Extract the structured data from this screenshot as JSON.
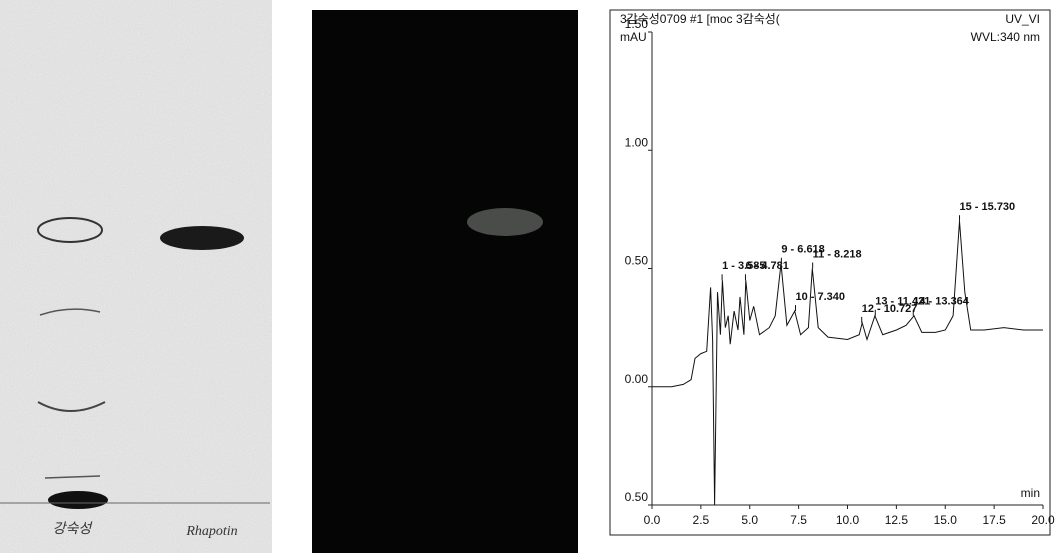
{
  "tlc": {
    "lane_labels": [
      "강숙성",
      "Rhapotin"
    ]
  },
  "chart_data": {
    "type": "line",
    "title": "3감숙성0709 #1 [moc",
    "subtitle": "3감숙성(",
    "detector": "UV_VI",
    "wavelength": "WVL:340 nm",
    "y_unit": "mAU",
    "x_unit": "min",
    "color": "#111111",
    "xlim": [
      0,
      20
    ],
    "xticks": [
      {
        "value": 0,
        "label": "0.0"
      },
      2.5,
      {
        "value": 5,
        "label": "5.0"
      },
      7.5,
      {
        "value": 10,
        "label": "10.0"
      },
      12.5,
      {
        "value": 15,
        "label": "15.0"
      },
      17.5,
      {
        "value": 20,
        "label": "20.0"
      }
    ],
    "ylim": [
      -0.5,
      1.5
    ],
    "yticks": [
      {
        "value": -0.5,
        "label": "0.50"
      },
      {
        "value": 0,
        "label": "0.00"
      },
      {
        "value": 0.5,
        "label": "0.50"
      },
      {
        "value": 1,
        "label": "1.00"
      },
      {
        "value": 1.5,
        "label": "1.50"
      }
    ],
    "x": [
      0,
      1,
      1.6,
      2,
      2.2,
      2.5,
      2.8,
      3.0,
      3.1,
      3.2,
      3.35,
      3.5,
      3.6,
      3.75,
      3.9,
      4.0,
      4.2,
      4.4,
      4.5,
      4.7,
      4.8,
      5.0,
      5.2,
      5.5,
      6.0,
      6.3,
      6.6,
      6.9,
      7.3,
      7.6,
      8.0,
      8.2,
      8.5,
      9,
      10,
      10.6,
      10.75,
      11,
      11.4,
      11.8,
      12.5,
      13,
      13.4,
      13.8,
      14.5,
      15,
      15.4,
      15.73,
      16,
      16.3,
      17,
      18,
      19,
      20
    ],
    "values": [
      0.0,
      0.0,
      0.01,
      0.03,
      0.12,
      0.14,
      0.15,
      0.42,
      0.2,
      -0.5,
      0.4,
      0.22,
      0.45,
      0.25,
      0.3,
      0.18,
      0.32,
      0.24,
      0.38,
      0.22,
      0.45,
      0.28,
      0.34,
      0.22,
      0.25,
      0.3,
      0.52,
      0.26,
      0.32,
      0.22,
      0.25,
      0.5,
      0.25,
      0.21,
      0.2,
      0.22,
      0.27,
      0.2,
      0.3,
      0.22,
      0.24,
      0.26,
      0.3,
      0.23,
      0.23,
      0.24,
      0.3,
      0.7,
      0.4,
      0.24,
      0.24,
      0.25,
      0.24,
      0.24
    ],
    "peaks": [
      {
        "label": "1 - 3.585",
        "x": 3.585,
        "y": 0.45
      },
      {
        "label": "6 - 4.781",
        "x": 4.781,
        "y": 0.45
      },
      {
        "label": "9 - 6.618",
        "x": 6.618,
        "y": 0.52
      },
      {
        "label": "10 - 7.340",
        "x": 7.34,
        "y": 0.32
      },
      {
        "label": "11 - 8.218",
        "x": 8.218,
        "y": 0.5
      },
      {
        "label": "12 - 10.727",
        "x": 10.727,
        "y": 0.27
      },
      {
        "label": "13 - 11.421",
        "x": 11.421,
        "y": 0.3
      },
      {
        "label": "14 - 13.364",
        "x": 13.364,
        "y": 0.3
      },
      {
        "label": "15 - 15.730",
        "x": 15.73,
        "y": 0.7
      }
    ]
  }
}
